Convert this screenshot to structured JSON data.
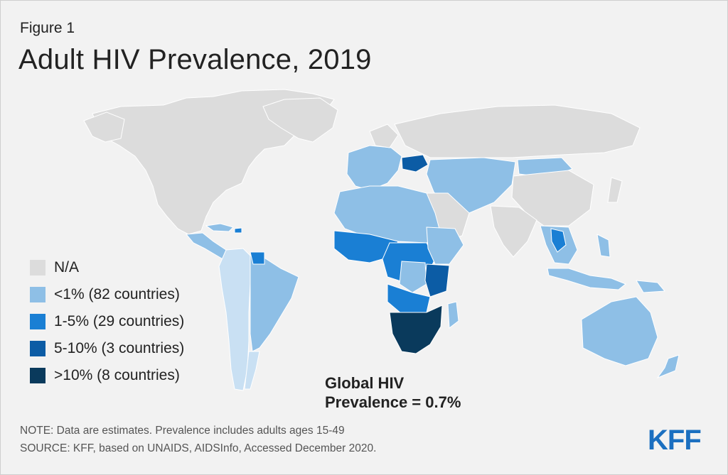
{
  "figure_label": "Figure 1",
  "title": "Adult HIV Prevalence, 2019",
  "colors": {
    "na": "#dcdcdc",
    "lt1": "#8ebfe6",
    "lt1_light": "#c9e0f3",
    "p1_5": "#1a7fd4",
    "p5_10": "#0c5ca5",
    "gt10": "#0a3a5c",
    "background": "#f2f2f2",
    "brand": "#1b6fc0"
  },
  "legend": [
    {
      "label": "N/A",
      "color": "#dcdcdc"
    },
    {
      "label": "<1% (82 countries)",
      "color": "#8ebfe6"
    },
    {
      "label": "1-5% (29 countries)",
      "color": "#1a7fd4"
    },
    {
      "label": "5-10% (3 countries)",
      "color": "#0c5ca5"
    },
    {
      "label": ">10% (8 countries)",
      "color": "#0a3a5c"
    }
  ],
  "stat": {
    "line1": "Global HIV",
    "line2": "Prevalence = 0.7%"
  },
  "footnote": {
    "note": "NOTE: Data are estimates. Prevalence includes adults ages 15-49",
    "source": "SOURCE: KFF, based on UNAIDS, AIDSInfo, Accessed December 2020."
  },
  "logo": "KFF"
}
